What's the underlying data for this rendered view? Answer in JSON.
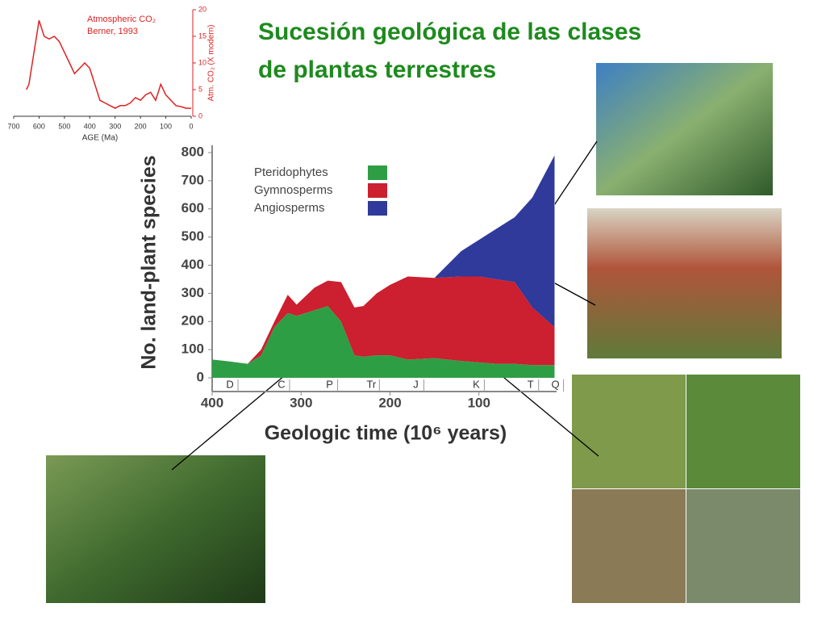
{
  "title": [
    "Sucesión geológica de las clases",
    "de plantas terrestres"
  ],
  "chart_data": [
    {
      "type": "line",
      "title": "Atmospheric CO₂",
      "subtitle": "Berner, 1993",
      "xlabel": "AGE (Ma)",
      "ylabel": "Atm. CO₂ (X modern)",
      "color": "#dd2222",
      "x": [
        650,
        640,
        600,
        580,
        560,
        540,
        520,
        500,
        480,
        460,
        440,
        420,
        400,
        380,
        360,
        340,
        320,
        300,
        280,
        260,
        240,
        220,
        200,
        180,
        160,
        140,
        120,
        100,
        80,
        60,
        40,
        20,
        0
      ],
      "values": [
        5,
        6,
        18,
        15,
        14.5,
        15,
        14,
        12,
        10,
        8,
        9,
        10,
        9,
        6,
        3,
        2.5,
        2,
        1.5,
        2,
        2,
        2.5,
        3.5,
        3,
        4,
        4.5,
        3,
        6,
        4,
        3,
        2,
        1.8,
        1.5,
        1.5
      ],
      "xlim": [
        700,
        0
      ],
      "xticks": [
        700,
        600,
        500,
        400,
        300,
        200,
        100,
        0
      ],
      "ylim": [
        0,
        20
      ],
      "yticks": [
        0,
        5,
        10,
        15,
        20
      ]
    },
    {
      "type": "stacked-area",
      "xlabel": "Geologic time (10⁶ years)",
      "ylabel": "No. land-plant species",
      "x": [
        400,
        385,
        360,
        345,
        330,
        315,
        305,
        285,
        270,
        255,
        240,
        230,
        215,
        200,
        180,
        150,
        120,
        100,
        80,
        60,
        40,
        15
      ],
      "series": [
        {
          "name": "Pteridophytes",
          "color": "#2e9e45",
          "values": [
            65,
            60,
            50,
            80,
            180,
            230,
            220,
            240,
            255,
            200,
            80,
            75,
            80,
            80,
            65,
            70,
            60,
            55,
            50,
            50,
            45,
            45
          ]
        },
        {
          "name": "Gymnosperms",
          "color": "#cc1f2f",
          "values": [
            0,
            0,
            0,
            20,
            20,
            65,
            40,
            80,
            90,
            140,
            170,
            180,
            220,
            250,
            295,
            285,
            300,
            305,
            300,
            290,
            205,
            135
          ]
        },
        {
          "name": "Angiosperms",
          "color": "#2f3a9a",
          "values": [
            0,
            0,
            0,
            0,
            0,
            0,
            0,
            0,
            0,
            0,
            0,
            0,
            0,
            0,
            0,
            0,
            90,
            130,
            180,
            230,
            390,
            610
          ]
        }
      ],
      "periods": [
        {
          "label": "D",
          "x": 380
        },
        {
          "label": "C",
          "x": 322
        },
        {
          "label": "P",
          "x": 268
        },
        {
          "label": "Tr",
          "x": 221
        },
        {
          "label": "J",
          "x": 171
        },
        {
          "label": "K",
          "x": 103
        },
        {
          "label": "T",
          "x": 42
        },
        {
          "label": "Q",
          "x": 14
        }
      ],
      "xlim": [
        400,
        0
      ],
      "xticks": [
        400,
        300,
        200,
        100
      ],
      "ylim": [
        0,
        800
      ],
      "yticks": [
        0,
        100,
        200,
        300,
        400,
        500,
        600,
        700,
        800
      ]
    }
  ]
}
